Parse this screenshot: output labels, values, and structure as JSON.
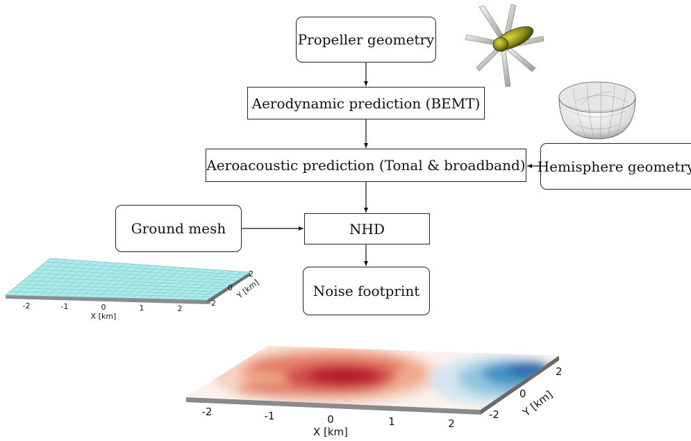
{
  "flowchart": {
    "propeller_geometry": "Propeller geometry",
    "aerodynamic_prediction": "Aerodynamic prediction (BEMT)",
    "aeroacoustic_prediction": "Aeroacoustic prediction (Tonal & broadband)",
    "hemisphere_geometry": "Hemisphere geometry",
    "ground_mesh": "Ground mesh",
    "nhd": "NHD",
    "noise_footprint": "Noise footprint"
  },
  "ground_mesh_plot": {
    "x_label": "X [km]",
    "y_label": "Y [km]",
    "x_ticks": [
      "-2",
      "-1",
      "0",
      "1",
      "2"
    ],
    "y_ticks": [
      "-2",
      "0",
      "2"
    ],
    "surface_color": "#a8ecec"
  },
  "footprint_plot": {
    "x_label": "X [km]",
    "y_label": "Y [km]",
    "x_ticks": [
      "-2",
      "-1",
      "0",
      "1",
      "2"
    ],
    "y_ticks": [
      "-2",
      "0",
      "2"
    ]
  },
  "colors": {
    "propeller_hub": "#8a8a10",
    "high_noise": "#b2182b",
    "low_noise": "#2166ac"
  }
}
